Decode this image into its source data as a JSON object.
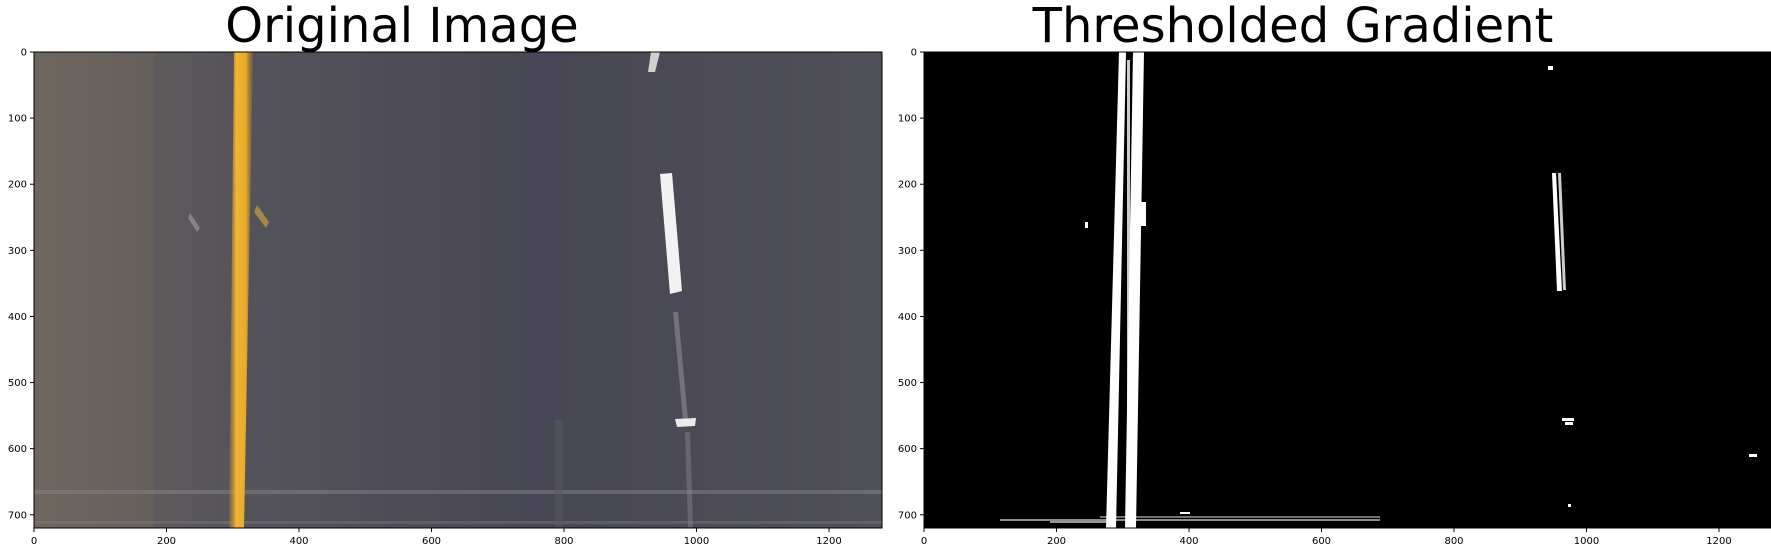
{
  "panels": [
    {
      "title": "Original Image",
      "image_kind": "road-color",
      "x_ticks": [
        0,
        200,
        400,
        600,
        800,
        1000,
        1200
      ],
      "y_ticks": [
        0,
        100,
        200,
        300,
        400,
        500,
        600,
        700
      ],
      "x_range": [
        0,
        1280
      ],
      "y_range": [
        720,
        0
      ]
    },
    {
      "title": "Thresholded Gradient",
      "image_kind": "binary-mask",
      "x_ticks": [
        0,
        200,
        400,
        600,
        800,
        1000,
        1200
      ],
      "y_ticks": [
        0,
        100,
        200,
        300,
        400,
        500,
        600,
        700
      ],
      "x_range": [
        0,
        1280
      ],
      "y_range": [
        720,
        0
      ]
    }
  ],
  "colors": {
    "road": "#4a4a56",
    "yellow_lane": "#e8b030",
    "white_lane": "#f4f4f4",
    "mask_bg": "#000000",
    "mask_fg": "#ffffff"
  }
}
